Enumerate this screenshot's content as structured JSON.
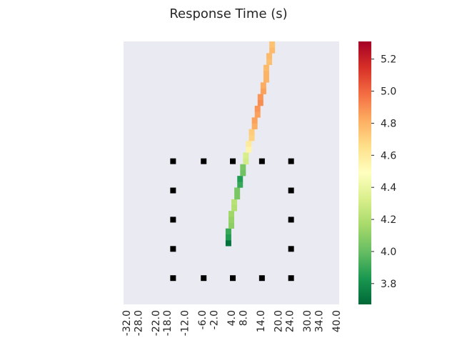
{
  "chart_data": {
    "type": "heatmap",
    "title": "Response Time (s)",
    "xlabel": "",
    "ylabel": "",
    "x_ticks": [
      "-32.0",
      "-28.0",
      "-22.0",
      "-18.0",
      "-12.0",
      "-6.0",
      "-2.0",
      "4.0",
      "8.0",
      "14.0",
      "20.0",
      "24.0",
      "30.0",
      "34.0",
      "40.0"
    ],
    "x_range": [
      -33,
      41
    ],
    "grid_rows": 45,
    "y_ticks_shown": false,
    "background_color": "#eaeaf2",
    "colormap": "RdYlGn_r",
    "colorbar": {
      "range": [
        3.67,
        5.31
      ],
      "ticks": [
        "3.8",
        "4.0",
        "4.2",
        "4.4",
        "4.6",
        "4.8",
        "5.0",
        "5.2"
      ]
    },
    "cells": [
      {
        "x": 3.0,
        "row": 34,
        "value": 3.7
      },
      {
        "x": 3.0,
        "row": 33,
        "value": 3.85
      },
      {
        "x": 3.0,
        "row": 32,
        "value": 3.9
      },
      {
        "x": 4.0,
        "row": 31,
        "value": 4.1
      },
      {
        "x": 4.0,
        "row": 30,
        "value": 4.12
      },
      {
        "x": 4.0,
        "row": 29,
        "value": 4.15
      },
      {
        "x": 5.0,
        "row": 28,
        "value": 4.2
      },
      {
        "x": 5.0,
        "row": 27,
        "value": 4.22
      },
      {
        "x": 6.0,
        "row": 26,
        "value": 4.05
      },
      {
        "x": 6.0,
        "row": 25,
        "value": 4.05
      },
      {
        "x": 7.0,
        "row": 24,
        "value": 3.9
      },
      {
        "x": 7.0,
        "row": 23,
        "value": 3.85
      },
      {
        "x": 8.0,
        "row": 22,
        "value": 4.02
      },
      {
        "x": 8.0,
        "row": 21,
        "value": 4.05
      },
      {
        "x": 9.0,
        "row": 20,
        "value": 4.3
      },
      {
        "x": 9.0,
        "row": 19,
        "value": 4.32
      },
      {
        "x": 10.0,
        "row": 18,
        "value": 4.55
      },
      {
        "x": 10.0,
        "row": 17,
        "value": 4.6
      },
      {
        "x": 11.0,
        "row": 16,
        "value": 4.7
      },
      {
        "x": 11.0,
        "row": 15,
        "value": 4.72
      },
      {
        "x": 12.0,
        "row": 14,
        "value": 4.82
      },
      {
        "x": 12.0,
        "row": 13,
        "value": 4.85
      },
      {
        "x": 13.0,
        "row": 12,
        "value": 4.85
      },
      {
        "x": 13.0,
        "row": 11,
        "value": 4.88
      },
      {
        "x": 14.0,
        "row": 10,
        "value": 4.9
      },
      {
        "x": 14.0,
        "row": 9,
        "value": 4.88
      },
      {
        "x": 15.0,
        "row": 8,
        "value": 4.85
      },
      {
        "x": 15.0,
        "row": 7,
        "value": 4.82
      },
      {
        "x": 16.0,
        "row": 6,
        "value": 4.8
      },
      {
        "x": 16.0,
        "row": 5,
        "value": 4.8
      },
      {
        "x": 16.0,
        "row": 4,
        "value": 4.78
      },
      {
        "x": 17.0,
        "row": 3,
        "value": 4.76
      },
      {
        "x": 17.0,
        "row": 2,
        "value": 4.78
      },
      {
        "x": 18.0,
        "row": 1,
        "value": 4.78
      },
      {
        "x": 18.0,
        "row": 0,
        "value": 4.75
      }
    ],
    "markers": {
      "color": "#000000",
      "x_positions": [
        -16,
        -5.5,
        4.5,
        14.5,
        24.5
      ],
      "rows": [
        20,
        25,
        30,
        35,
        40
      ]
    }
  }
}
